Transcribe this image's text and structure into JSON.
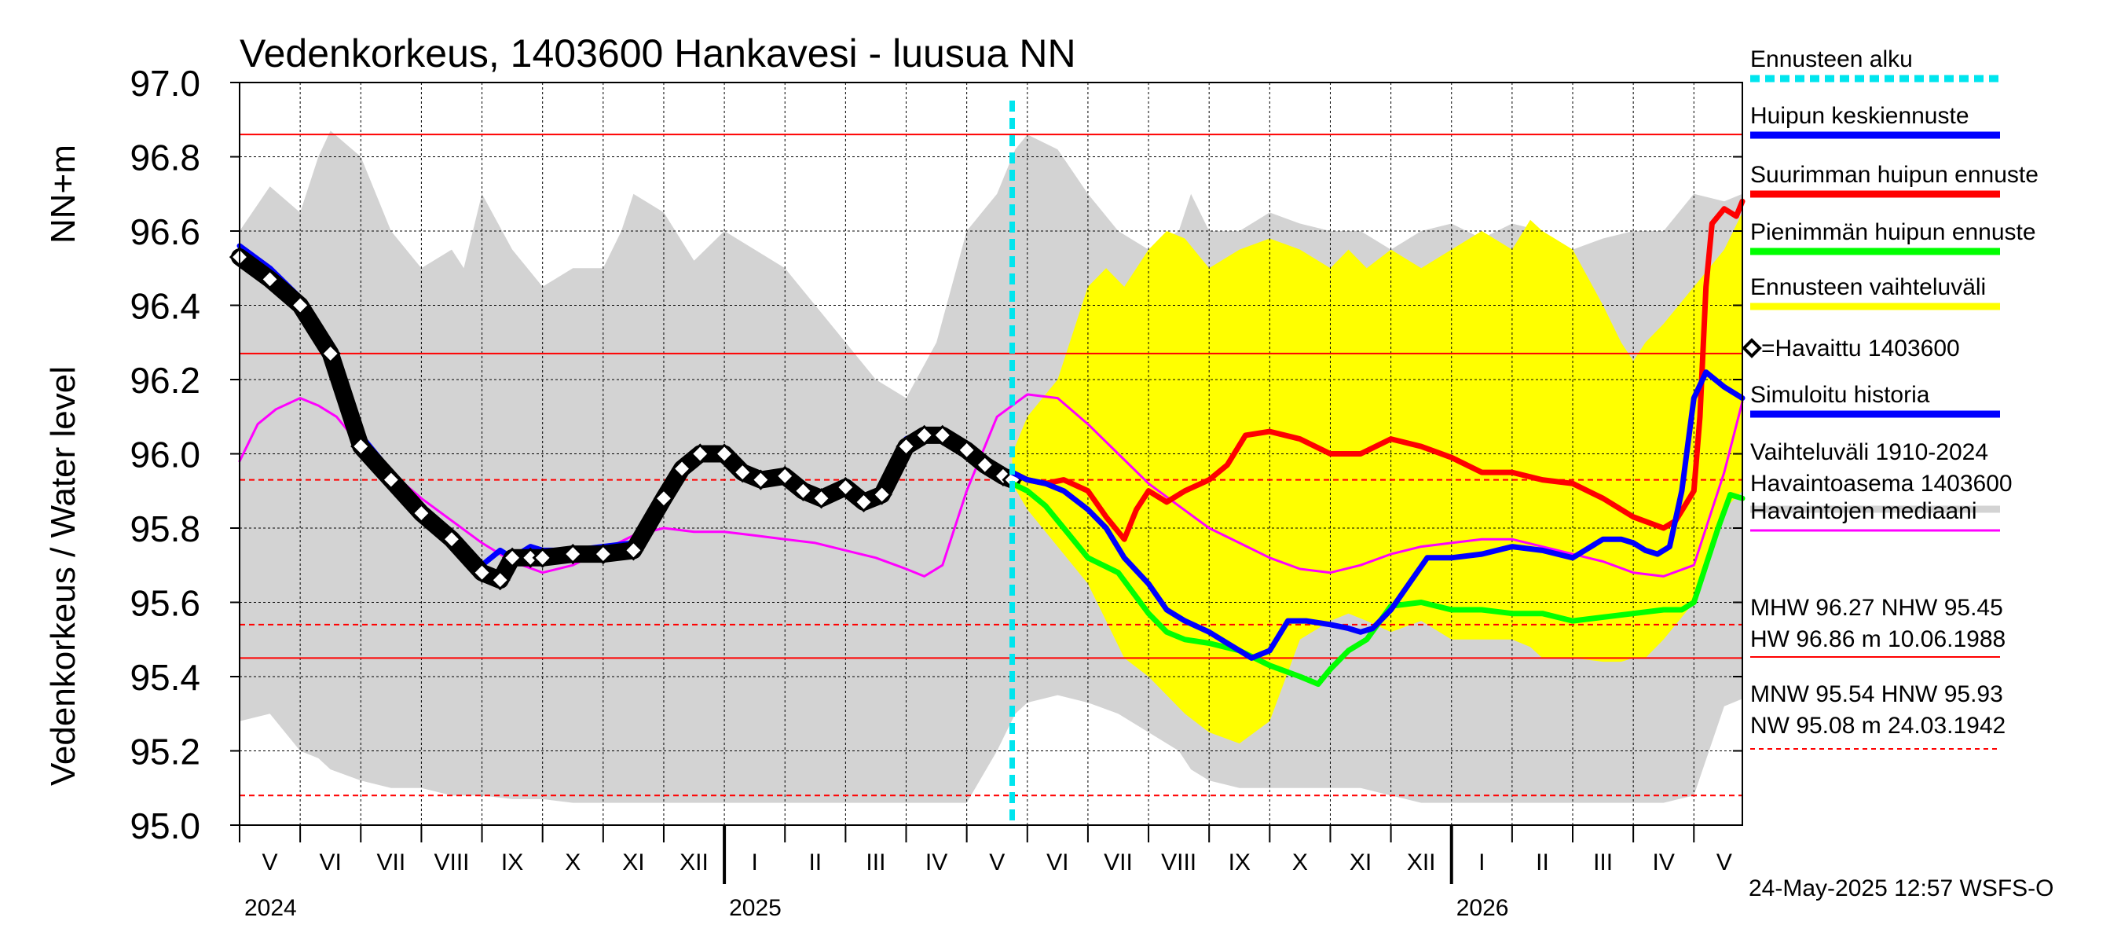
{
  "chart_data": {
    "type": "line",
    "title": "Vedenkorkeus, 1403600 Hankavesi - luusua NN",
    "ylabel": "Vedenkorkeus / Water level",
    "yunit": "NN+m",
    "ylim": [
      95.0,
      97.0
    ],
    "yticks": [
      "95.0",
      "95.2",
      "95.4",
      "95.6",
      "95.8",
      "96.0",
      "96.2",
      "96.4",
      "96.6",
      "96.8",
      "97.0"
    ],
    "x_unit": "months since 1 May 2024",
    "xlim": [
      0,
      24.8
    ],
    "forecast_start": 12.75,
    "month_labels": [
      "V",
      "VI",
      "VII",
      "VIII",
      "IX",
      "X",
      "XI",
      "XII",
      "I",
      "II",
      "III",
      "IV",
      "V",
      "VI",
      "VII",
      "VIII",
      "IX",
      "X",
      "XI",
      "XII",
      "I",
      "II",
      "III",
      "IV",
      "V"
    ],
    "year_labels": [
      {
        "label": "2024",
        "x": 0
      },
      {
        "label": "2025",
        "x": 8
      },
      {
        "label": "2026",
        "x": 20
      }
    ],
    "reference_lines": [
      {
        "name": "HW",
        "value": 96.86,
        "style": "solid"
      },
      {
        "name": "MHW",
        "value": 96.27,
        "style": "solid"
      },
      {
        "name": "HNW",
        "value": 95.93,
        "style": "dashed"
      },
      {
        "name": "MNW",
        "value": 95.54,
        "style": "dashed"
      },
      {
        "name": "NHW",
        "value": 95.45,
        "style": "solid"
      },
      {
        "name": "NW",
        "value": 95.08,
        "style": "dashed"
      }
    ],
    "series": [
      {
        "name": "Vaihteluväli 1910-2024 Havaintoasema 1403600",
        "kind": "band",
        "color": "#d3d3d3",
        "x": [
          0,
          0.5,
          1,
          1.3,
          1.5,
          2,
          2.5,
          3,
          3.5,
          3.7,
          4,
          4.5,
          5,
          5.5,
          6,
          6.3,
          6.5,
          7,
          7.5,
          8,
          8.5,
          9,
          9.5,
          10,
          10.5,
          11,
          11.5,
          12,
          12.5,
          12.8,
          13,
          13.5,
          14,
          14.5,
          15,
          15.5,
          15.7,
          16,
          16.5,
          17,
          17.5,
          18,
          18.5,
          19,
          19.5,
          20,
          20.5,
          21,
          21.5,
          22,
          22.5,
          23,
          23.5,
          24,
          24.5,
          24.8
        ],
        "upper": [
          96.6,
          96.72,
          96.65,
          96.8,
          96.87,
          96.8,
          96.6,
          96.5,
          96.55,
          96.5,
          96.7,
          96.55,
          96.45,
          96.5,
          96.5,
          96.6,
          96.7,
          96.65,
          96.52,
          96.6,
          96.55,
          96.5,
          96.4,
          96.3,
          96.2,
          96.15,
          96.3,
          96.6,
          96.7,
          96.82,
          96.86,
          96.82,
          96.7,
          96.6,
          96.55,
          96.6,
          96.7,
          96.6,
          96.6,
          96.65,
          96.62,
          96.6,
          96.6,
          96.55,
          96.6,
          96.62,
          96.58,
          96.62,
          96.6,
          96.55,
          96.58,
          96.6,
          96.6,
          96.7,
          96.68,
          96.7
        ],
        "lower": [
          95.28,
          95.3,
          95.2,
          95.18,
          95.15,
          95.12,
          95.1,
          95.1,
          95.08,
          95.08,
          95.08,
          95.07,
          95.07,
          95.06,
          95.06,
          95.06,
          95.06,
          95.06,
          95.06,
          95.06,
          95.06,
          95.06,
          95.06,
          95.06,
          95.06,
          95.06,
          95.06,
          95.06,
          95.2,
          95.3,
          95.33,
          95.35,
          95.33,
          95.3,
          95.25,
          95.2,
          95.15,
          95.12,
          95.1,
          95.1,
          95.1,
          95.1,
          95.1,
          95.08,
          95.06,
          95.06,
          95.06,
          95.06,
          95.06,
          95.06,
          95.06,
          95.06,
          95.06,
          95.08,
          95.32,
          95.34
        ]
      },
      {
        "name": "Ennusteen vaihteluväli",
        "kind": "band",
        "color": "#ffff00",
        "x": [
          12.75,
          13,
          13.5,
          14,
          14.3,
          14.6,
          15,
          15.3,
          15.6,
          16,
          16.5,
          17,
          17.5,
          18,
          18.3,
          18.6,
          19,
          19.5,
          20,
          20.5,
          21,
          21.3,
          21.5,
          22,
          22.5,
          22.8,
          23,
          23.2,
          23.5,
          24,
          24.5,
          24.8
        ],
        "upper": [
          96.0,
          96.1,
          96.2,
          96.45,
          96.5,
          96.45,
          96.55,
          96.6,
          96.58,
          96.5,
          96.55,
          96.58,
          96.55,
          96.5,
          96.55,
          96.5,
          96.55,
          96.5,
          96.55,
          96.6,
          96.55,
          96.63,
          96.6,
          96.55,
          96.4,
          96.3,
          96.25,
          96.3,
          96.35,
          96.45,
          96.55,
          96.65
        ],
        "lower": [
          95.92,
          95.85,
          95.75,
          95.65,
          95.55,
          95.45,
          95.4,
          95.35,
          95.3,
          95.25,
          95.22,
          95.28,
          95.5,
          95.55,
          95.57,
          95.55,
          95.52,
          95.55,
          95.5,
          95.5,
          95.5,
          95.48,
          95.45,
          95.45,
          95.44,
          95.44,
          95.45,
          95.45,
          95.5,
          95.6,
          95.85,
          95.9
        ]
      },
      {
        "name": "Havaintojen mediaani",
        "kind": "line",
        "color": "#ff00ff",
        "x": [
          0,
          0.3,
          0.6,
          1,
          1.3,
          1.6,
          2,
          2.5,
          3,
          3.5,
          4,
          4.5,
          5,
          5.5,
          6,
          6.5,
          7,
          7.5,
          8,
          8.5,
          9,
          9.5,
          10,
          10.5,
          11,
          11.3,
          11.6,
          12,
          12.5,
          13,
          13.5,
          14,
          14.5,
          15,
          15.5,
          16,
          16.5,
          17,
          17.5,
          18,
          18.5,
          19,
          19.5,
          20,
          20.5,
          21,
          21.5,
          22,
          22.5,
          23,
          23.5,
          24,
          24.5,
          24.8
        ],
        "y": [
          95.98,
          96.08,
          96.12,
          96.15,
          96.13,
          96.1,
          96.02,
          95.95,
          95.88,
          95.82,
          95.76,
          95.71,
          95.68,
          95.7,
          95.74,
          95.78,
          95.8,
          95.79,
          95.79,
          95.78,
          95.77,
          95.76,
          95.74,
          95.72,
          95.69,
          95.67,
          95.7,
          95.9,
          96.1,
          96.16,
          96.15,
          96.08,
          96.0,
          95.92,
          95.86,
          95.8,
          95.76,
          95.72,
          95.69,
          95.68,
          95.7,
          95.73,
          95.75,
          95.76,
          95.77,
          95.77,
          95.75,
          95.73,
          95.71,
          95.68,
          95.67,
          95.7,
          95.95,
          96.14
        ]
      },
      {
        "name": "Simuloitu historia",
        "kind": "line",
        "color": "#0000ff",
        "x": [
          0,
          0.5,
          1,
          1.5,
          2,
          2.5,
          3,
          3.5,
          4,
          4.3,
          4.5,
          4.8,
          5,
          5.5,
          6,
          6.5,
          7,
          7.3,
          7.6,
          8,
          8.3,
          8.6,
          9,
          9.3,
          9.6,
          10,
          10.3,
          10.6,
          11,
          11.3,
          11.6,
          12,
          12.3,
          12.6,
          12.75
        ],
        "y": [
          96.56,
          96.5,
          96.42,
          96.3,
          96.05,
          95.95,
          95.85,
          95.78,
          95.7,
          95.74,
          95.72,
          95.75,
          95.74,
          95.74,
          95.75,
          95.76,
          95.9,
          95.97,
          96.0,
          96.01,
          95.96,
          95.94,
          95.95,
          95.91,
          95.89,
          95.92,
          95.88,
          95.9,
          96.04,
          96.06,
          96.05,
          96.02,
          95.98,
          95.95,
          95.94
        ]
      },
      {
        "name": "Havaittu 1403600",
        "kind": "markers",
        "color": "#000000",
        "x": [
          0,
          0.5,
          1,
          1.5,
          2,
          2.5,
          3,
          3.5,
          4,
          4.3,
          4.5,
          4.8,
          5,
          5.5,
          6,
          6.5,
          7,
          7.3,
          7.6,
          8,
          8.3,
          8.6,
          9,
          9.3,
          9.6,
          10,
          10.3,
          10.6,
          11,
          11.3,
          11.6,
          12,
          12.3,
          12.6,
          12.75
        ],
        "y": [
          96.53,
          96.47,
          96.4,
          96.27,
          96.02,
          95.93,
          95.84,
          95.77,
          95.68,
          95.66,
          95.72,
          95.72,
          95.72,
          95.73,
          95.73,
          95.74,
          95.88,
          95.96,
          96.0,
          96.0,
          95.95,
          95.93,
          95.94,
          95.9,
          95.88,
          95.91,
          95.87,
          95.89,
          96.02,
          96.05,
          96.05,
          96.01,
          95.97,
          95.94,
          95.93
        ]
      },
      {
        "name": "Suurimman huipun ennuste",
        "kind": "line",
        "color": "#ff0000",
        "x": [
          12.75,
          13,
          13.3,
          13.6,
          14,
          14.3,
          14.6,
          14.8,
          15,
          15.3,
          15.6,
          16,
          16.3,
          16.6,
          17,
          17.5,
          18,
          18.5,
          19,
          19.5,
          20,
          20.5,
          21,
          21.5,
          22,
          22.5,
          23,
          23.5,
          23.7,
          24,
          24.1,
          24.2,
          24.3,
          24.5,
          24.7,
          24.8
        ],
        "y": [
          95.95,
          95.93,
          95.92,
          95.93,
          95.9,
          95.83,
          95.77,
          95.85,
          95.9,
          95.87,
          95.9,
          95.93,
          95.97,
          96.05,
          96.06,
          96.04,
          96.0,
          96.0,
          96.04,
          96.02,
          95.99,
          95.95,
          95.95,
          95.93,
          95.92,
          95.88,
          95.83,
          95.8,
          95.82,
          95.9,
          96.1,
          96.45,
          96.62,
          96.66,
          96.64,
          96.68
        ]
      },
      {
        "name": "Pienimmän huipun ennuste",
        "kind": "line",
        "color": "#00ff00",
        "x": [
          12.75,
          13,
          13.3,
          13.6,
          14,
          14.5,
          15,
          15.3,
          15.6,
          16,
          16.5,
          17,
          17.5,
          17.8,
          18,
          18.3,
          18.6,
          19,
          19.5,
          20,
          20.5,
          21,
          21.5,
          22,
          22.5,
          23,
          23.5,
          23.8,
          24,
          24.2,
          24.4,
          24.6,
          24.8
        ],
        "y": [
          95.92,
          95.9,
          95.86,
          95.8,
          95.72,
          95.68,
          95.57,
          95.52,
          95.5,
          95.49,
          95.47,
          95.43,
          95.4,
          95.38,
          95.42,
          95.47,
          95.5,
          95.59,
          95.6,
          95.58,
          95.58,
          95.57,
          95.57,
          95.55,
          95.56,
          95.57,
          95.58,
          95.58,
          95.6,
          95.7,
          95.8,
          95.89,
          95.88
        ]
      },
      {
        "name": "Huipun keskiennuste",
        "kind": "line",
        "color": "#0000ff",
        "x": [
          12.75,
          13,
          13.3,
          13.6,
          14,
          14.3,
          14.6,
          15,
          15.3,
          15.6,
          16,
          16.3,
          16.5,
          16.7,
          17,
          17.3,
          17.6,
          18,
          18.3,
          18.5,
          18.7,
          19,
          19.3,
          19.6,
          20,
          20.5,
          21,
          21.5,
          22,
          22.3,
          22.5,
          22.8,
          23,
          23.2,
          23.4,
          23.6,
          23.8,
          24,
          24.2,
          24.5,
          24.8
        ],
        "y": [
          95.95,
          95.93,
          95.92,
          95.9,
          95.85,
          95.8,
          95.72,
          95.65,
          95.58,
          95.55,
          95.52,
          95.49,
          95.47,
          95.45,
          95.47,
          95.55,
          95.55,
          95.54,
          95.53,
          95.52,
          95.53,
          95.58,
          95.65,
          95.72,
          95.72,
          95.73,
          95.75,
          95.74,
          95.72,
          95.75,
          95.77,
          95.77,
          95.76,
          95.74,
          95.73,
          95.75,
          95.9,
          96.15,
          96.22,
          96.18,
          96.15
        ]
      }
    ],
    "legend": [
      {
        "label": "Ennusteen alku",
        "color": "#00e5ee",
        "style": "dashed"
      },
      {
        "label": "Huipun keskiennuste",
        "color": "#0000ff",
        "style": "solid"
      },
      {
        "label": "Suurimman huipun ennuste",
        "color": "#ff0000",
        "style": "solid"
      },
      {
        "label": "Pienimmän huipun ennuste",
        "color": "#00ff00",
        "style": "solid"
      },
      {
        "label": "Ennusteen vaihteluväli",
        "color": "#ffff00",
        "style": "solid"
      },
      {
        "label": "=Havaittu 1403600",
        "color": "#000000",
        "style": "marker"
      },
      {
        "label": "Simuloitu historia",
        "color": "#0000ff",
        "style": "solid"
      },
      {
        "label": "Vaihteluväli 1910-2024",
        "label2": " Havaintoasema 1403600",
        "color": "#d3d3d3",
        "style": "solid"
      },
      {
        "label": "Havaintojen mediaani",
        "color": "#ff00ff",
        "style": "solid"
      }
    ],
    "stats": {
      "line1": "MHW  96.27 NHW  95.45",
      "line2": "HW  96.86 m 10.06.1988",
      "line3": "MNW  95.54 HNW  95.93",
      "line4": "NW  95.08 m 24.03.1942"
    },
    "footer": "24-May-2025 12:57 WSFS-O"
  }
}
